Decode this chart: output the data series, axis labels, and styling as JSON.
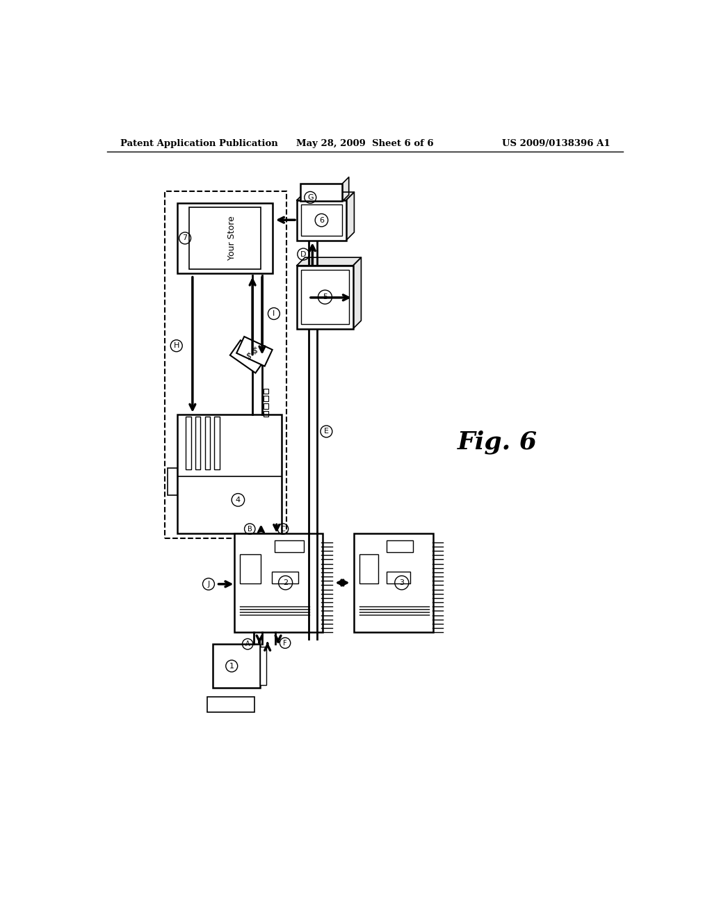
{
  "bg_color": "#ffffff",
  "line_color": "#000000",
  "header_left": "Patent Application Publication",
  "header_center": "May 28, 2009  Sheet 6 of 6",
  "header_right": "US 2009/0138396 A1",
  "fig_label": "Fig. 6",
  "fig_label_fontsize": 26
}
